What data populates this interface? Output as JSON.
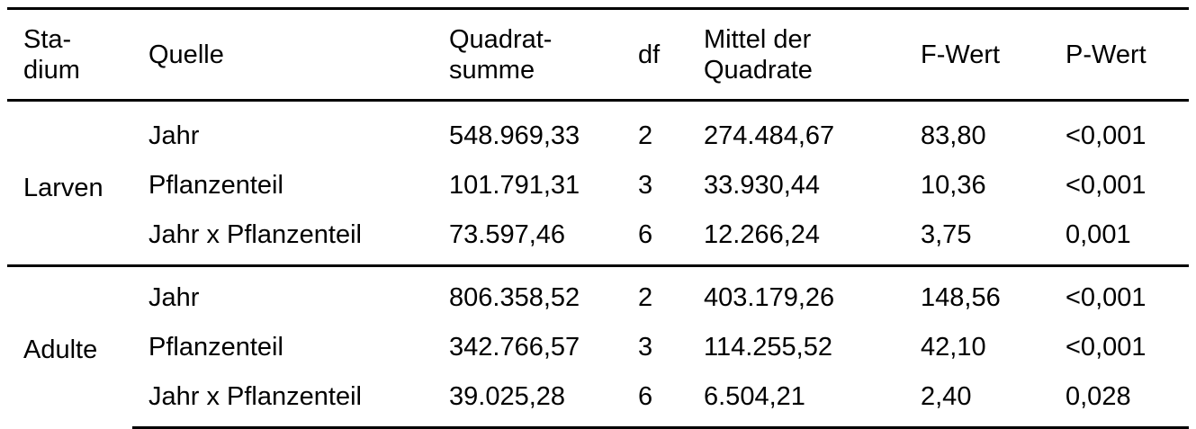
{
  "header": {
    "stadium": [
      "Sta-",
      "dium"
    ],
    "quelle": "Quelle",
    "quadratsumme": [
      "Quadrat-",
      "summe"
    ],
    "df": "df",
    "mittel": [
      "Mittel der",
      "Quadrate"
    ],
    "fwert": "F-Wert",
    "pwert": "P-Wert"
  },
  "groups": [
    {
      "stage": "Larven",
      "rows": [
        {
          "quelle": "Jahr",
          "qs": "548.969,33",
          "df": "2",
          "mq": "274.484,67",
          "f": "83,80",
          "p": "<0,001"
        },
        {
          "quelle": "Pflanzenteil",
          "qs": "101.791,31",
          "df": "3",
          "mq": "33.930,44",
          "f": "10,36",
          "p": "<0,001"
        },
        {
          "quelle": "Jahr x Pflanzenteil",
          "qs": "73.597,46",
          "df": "6",
          "mq": "12.266,24",
          "f": "3,75",
          "p": "0,001"
        }
      ]
    },
    {
      "stage": "Adulte",
      "rows": [
        {
          "quelle": "Jahr",
          "qs": "806.358,52",
          "df": "2",
          "mq": "403.179,26",
          "f": "148,56",
          "p": "<0,001"
        },
        {
          "quelle": "Pflanzenteil",
          "qs": "342.766,57",
          "df": "3",
          "mq": "114.255,52",
          "f": "42,10",
          "p": "<0,001"
        },
        {
          "quelle": "Jahr x Pflanzenteil",
          "qs": "39.025,28",
          "df": "6",
          "mq": "6.504,21",
          "f": "2,40",
          "p": "0,028"
        }
      ]
    }
  ]
}
